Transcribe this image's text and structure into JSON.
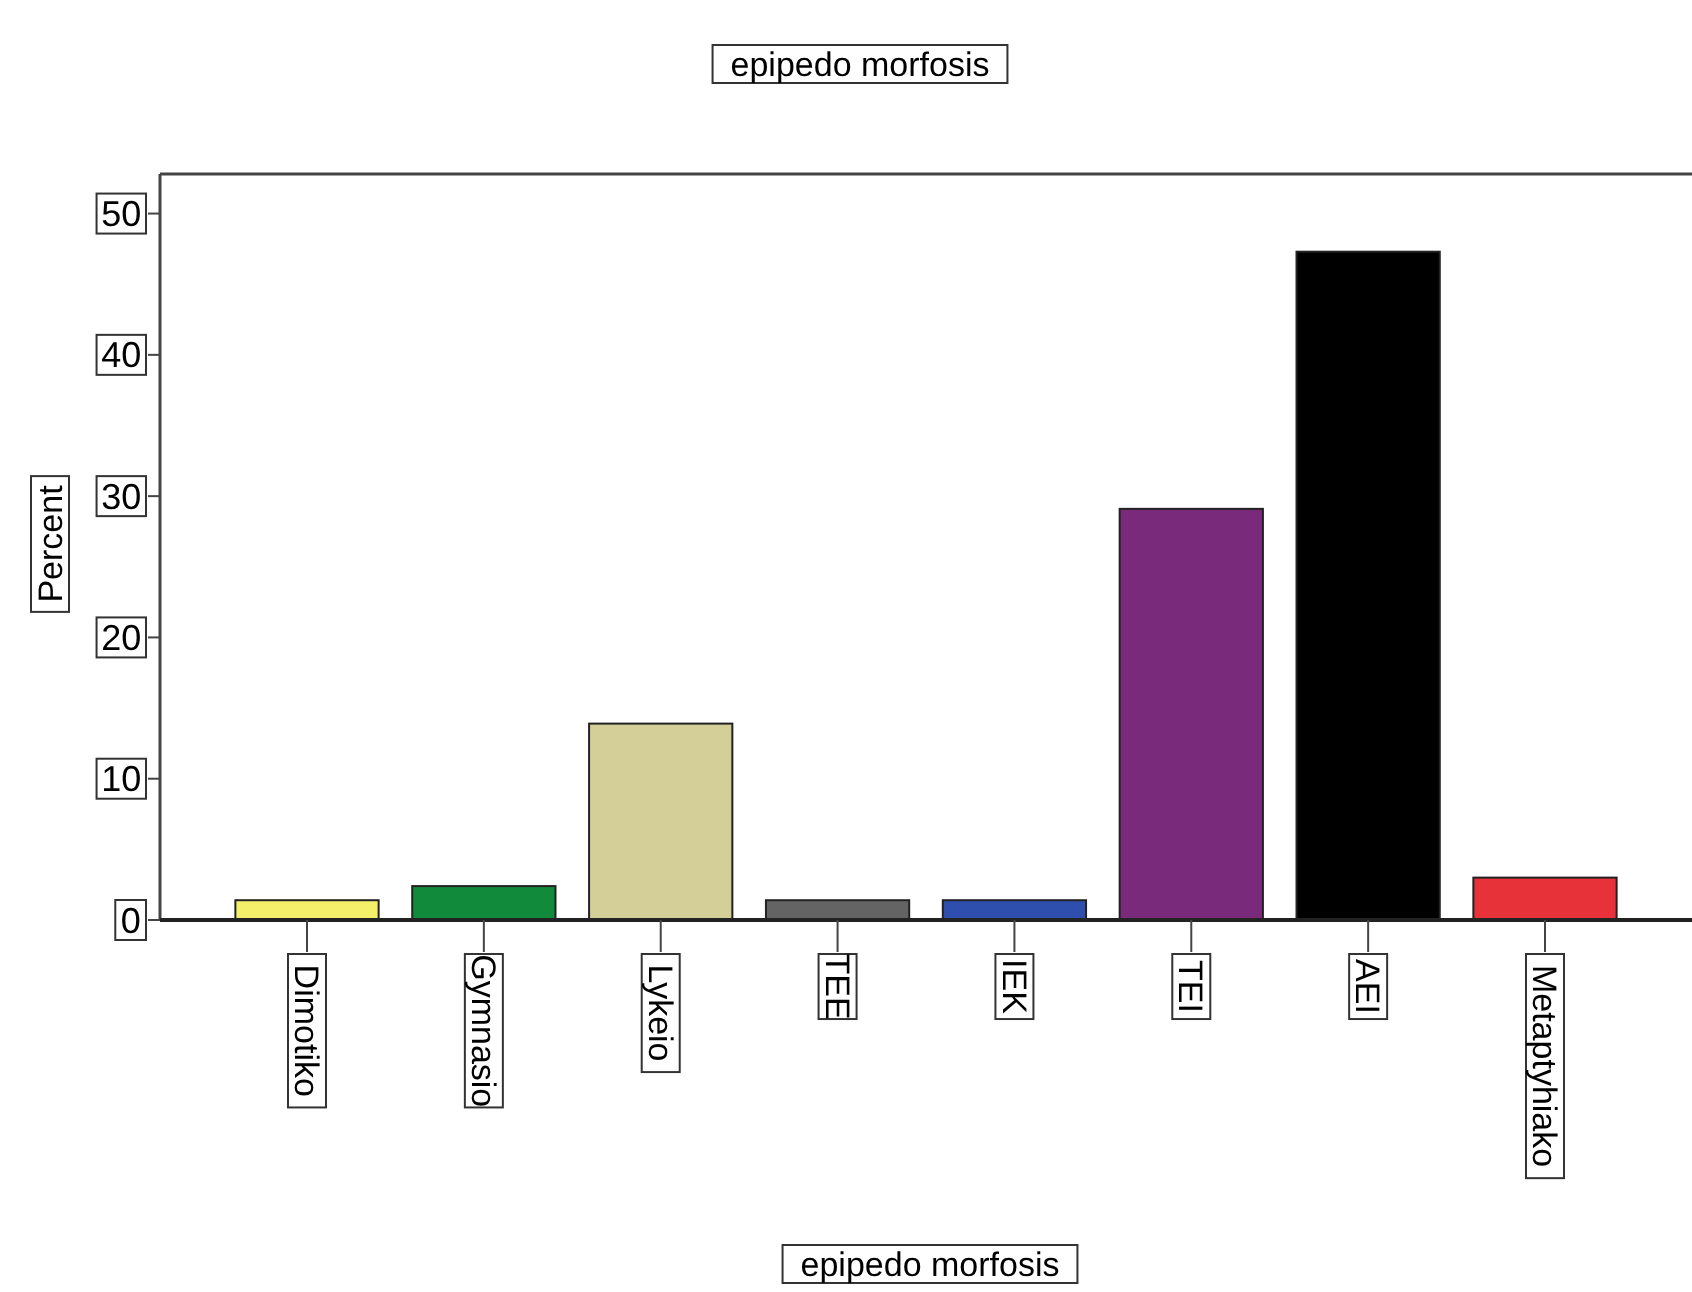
{
  "chart_data": {
    "type": "bar",
    "title": "epipedo morfosis",
    "xlabel": "epipedo morfosis",
    "ylabel": "Percent",
    "categories": [
      "Dimotiko",
      "Gymnasio",
      "Lykeio",
      "TEE",
      "IEK",
      "TEI",
      "AEI",
      "Metaptyhiako"
    ],
    "values": [
      1.4,
      2.4,
      13.9,
      1.4,
      1.4,
      29.1,
      47.3,
      3.0
    ],
    "colors": [
      "#f5f06a",
      "#128a3c",
      "#d4cf98",
      "#646464",
      "#2f4fae",
      "#7a2a7a",
      "#000000",
      "#e8323a"
    ],
    "ylim": [
      0,
      52.8
    ],
    "yticks": [
      0,
      10,
      20,
      30,
      40,
      50
    ],
    "grid": false
  }
}
